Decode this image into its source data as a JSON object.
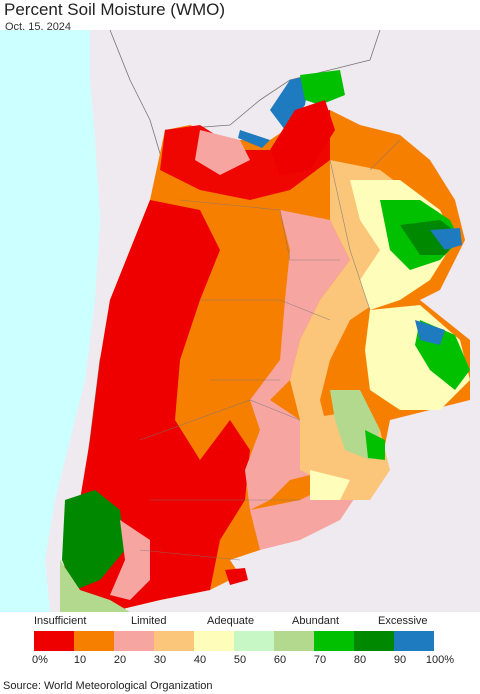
{
  "header": {
    "title": "Percent Soil Moisture (WMO)",
    "date": "Oct. 15, 2024"
  },
  "legend": {
    "categories": [
      "Insufficient",
      "Limited",
      "Adequate",
      "Abundant",
      "Excessive"
    ],
    "ticks": [
      "0%",
      "10",
      "20",
      "30",
      "40",
      "50",
      "60",
      "70",
      "80",
      "90",
      "100%"
    ],
    "colors": [
      "#ee0000",
      "#f77f00",
      "#f7a5a1",
      "#fbc57a",
      "#fefdb9",
      "#c8f7c6",
      "#b3d98e",
      "#00c000",
      "#008800",
      "#1e7bbf"
    ]
  },
  "footer": {
    "source": "Source: World Meteorological Organization"
  },
  "map_colors": {
    "ocean": "#ccffff",
    "neighbor_land": "#efeaf0",
    "border": "#777777"
  }
}
